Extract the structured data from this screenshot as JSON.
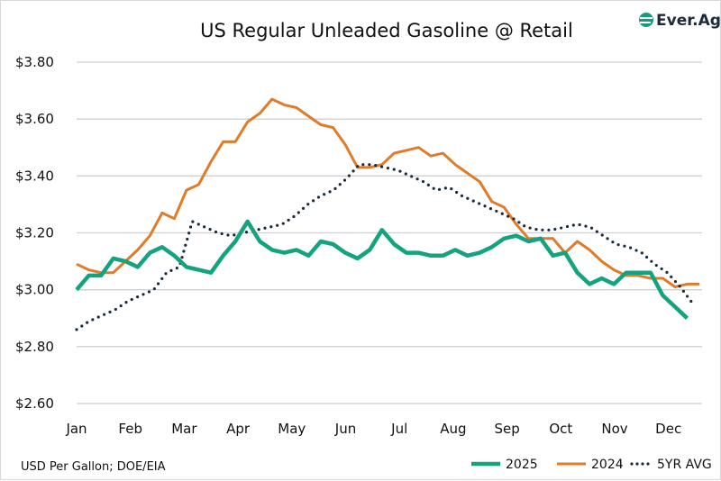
{
  "logo": {
    "text": "Ever.Ag",
    "color": "#1a9a7a"
  },
  "chart_data": {
    "type": "line",
    "title": "US Regular Unleaded Gasoline @ Retail",
    "source_note": "USD Per Gallon; DOE/EIA",
    "x_tick_labels": [
      "Jan",
      "Feb",
      "Mar",
      "Apr",
      "May",
      "Jun",
      "Jul",
      "Aug",
      "Sep",
      "Oct",
      "Nov",
      "Dec"
    ],
    "y_tick_labels": [
      "$2.60",
      "$2.80",
      "$3.00",
      "$3.20",
      "$3.40",
      "$3.60",
      "$3.80"
    ],
    "ylim": [
      2.6,
      3.8
    ],
    "x_unit": "weekly",
    "grid": "horizontal",
    "legend_placement": "bottom-right",
    "series": [
      {
        "name": "2025",
        "color": "#14a37f",
        "style": "solid-thick",
        "values": [
          3.0,
          3.05,
          3.05,
          3.11,
          3.1,
          3.08,
          3.13,
          3.15,
          3.12,
          3.08,
          3.07,
          3.06,
          3.12,
          3.17,
          3.24,
          3.17,
          3.14,
          3.13,
          3.14,
          3.12,
          3.17,
          3.16,
          3.13,
          3.11,
          3.14,
          3.21,
          3.16,
          3.13,
          3.13,
          3.12,
          3.12,
          3.14,
          3.12,
          3.13,
          3.15,
          3.18,
          3.19,
          3.17,
          3.18,
          3.12,
          3.13,
          3.06,
          3.02,
          3.04,
          3.02,
          3.06,
          3.06,
          3.06,
          2.98,
          2.94,
          2.9
        ]
      },
      {
        "name": "2024",
        "color": "#e07b2a",
        "style": "solid",
        "values": [
          3.09,
          3.07,
          3.06,
          3.06,
          3.1,
          3.14,
          3.19,
          3.27,
          3.25,
          3.35,
          3.37,
          3.45,
          3.52,
          3.52,
          3.59,
          3.62,
          3.67,
          3.65,
          3.64,
          3.61,
          3.58,
          3.57,
          3.51,
          3.43,
          3.43,
          3.44,
          3.48,
          3.49,
          3.5,
          3.47,
          3.48,
          3.44,
          3.41,
          3.38,
          3.31,
          3.29,
          3.23,
          3.18,
          3.18,
          3.18,
          3.13,
          3.17,
          3.14,
          3.1,
          3.07,
          3.05,
          3.05,
          3.04,
          3.04,
          3.01,
          3.02,
          3.02
        ]
      },
      {
        "name": "5YR AVG",
        "color": "#1b2a3a",
        "style": "dotted",
        "values": [
          2.86,
          2.89,
          2.91,
          2.93,
          2.96,
          2.98,
          3.0,
          3.06,
          3.08,
          3.24,
          3.22,
          3.2,
          3.19,
          3.2,
          3.21,
          3.22,
          3.23,
          3.26,
          3.3,
          3.33,
          3.35,
          3.39,
          3.44,
          3.44,
          3.43,
          3.42,
          3.4,
          3.38,
          3.35,
          3.36,
          3.33,
          3.31,
          3.29,
          3.27,
          3.25,
          3.22,
          3.21,
          3.21,
          3.22,
          3.23,
          3.22,
          3.19,
          3.16,
          3.15,
          3.13,
          3.09,
          3.06,
          3.01,
          2.95
        ]
      }
    ]
  }
}
